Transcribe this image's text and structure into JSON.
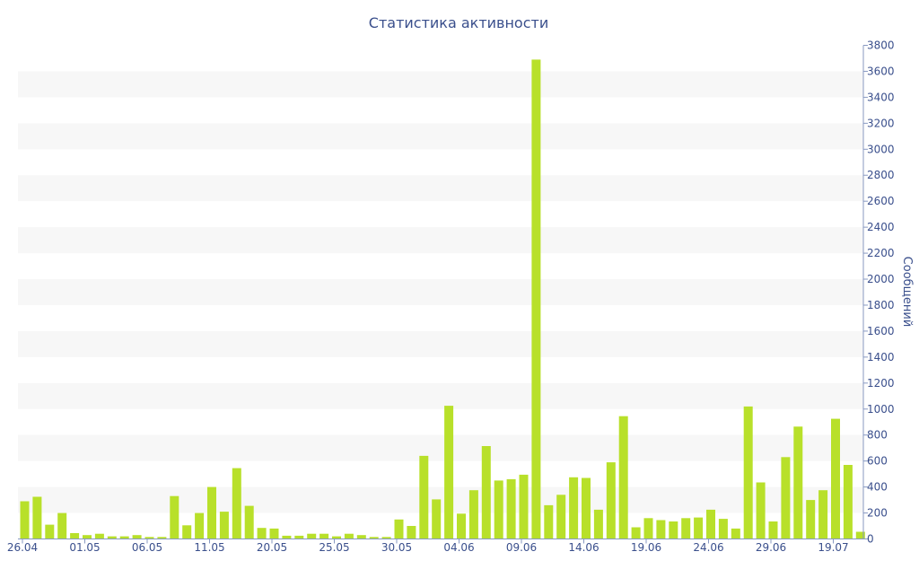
{
  "chart_data": {
    "type": "bar",
    "title": "Статистика активности",
    "xlabel": "",
    "ylabel": "Сообщений",
    "ylim": [
      0,
      3800
    ],
    "y_ticks": [
      0,
      200,
      400,
      600,
      800,
      1000,
      1200,
      1400,
      1600,
      1800,
      2000,
      2200,
      2400,
      2600,
      2800,
      3000,
      3200,
      3400,
      3600,
      3800
    ],
    "y_axis_side": "right",
    "x_tick_labels": [
      "26.04",
      "01.05",
      "06.05",
      "11.05",
      "20.05",
      "25.05",
      "30.05",
      "04.06",
      "09.06",
      "14.06",
      "19.06",
      "24.06",
      "29.06",
      "19.07"
    ],
    "values": [
      290,
      325,
      110,
      200,
      45,
      30,
      40,
      20,
      20,
      30,
      15,
      15,
      330,
      105,
      200,
      400,
      210,
      545,
      255,
      85,
      80,
      25,
      25,
      40,
      40,
      20,
      40,
      30,
      15,
      15,
      150,
      100,
      640,
      305,
      1025,
      195,
      375,
      715,
      450,
      460,
      495,
      3690,
      260,
      340,
      475,
      470,
      225,
      590,
      945,
      90,
      160,
      145,
      135,
      160,
      165,
      225,
      155,
      80,
      1020,
      435,
      135,
      630,
      865,
      300,
      375,
      925,
      570,
      55
    ],
    "colors": {
      "bar": "#b8e02a",
      "band": "#f7f7f7",
      "text": "#3a4f8c",
      "axis": "#8899c2"
    },
    "grid": true,
    "legend": "none"
  }
}
